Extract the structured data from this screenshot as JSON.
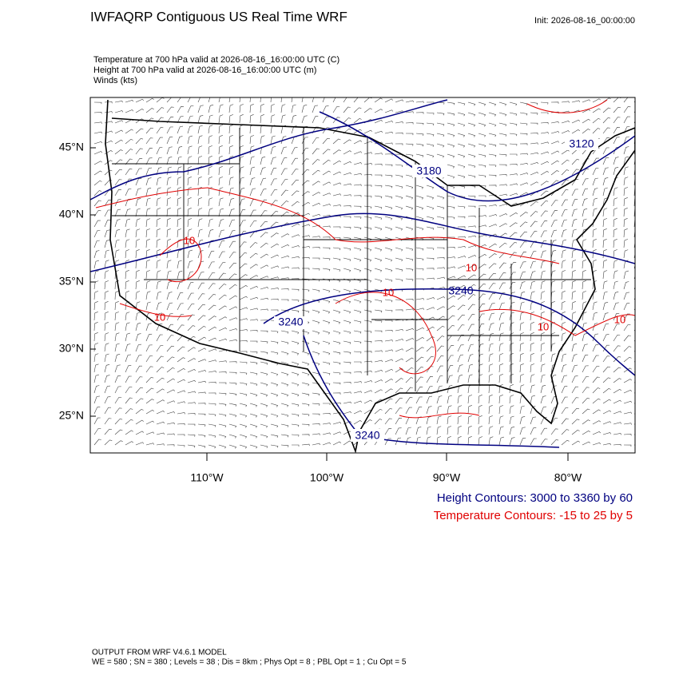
{
  "header": {
    "title": "IWFAQRP Contiguous US Real Time WRF",
    "init": "Init: 2026-08-16_00:00:00"
  },
  "fields": [
    "Temperature at 700 hPa valid at 2026-08-16_16:00:00 UTC   (C)",
    "Height at 700 hPa valid at 2026-08-16_16:00:00 UTC   (m)",
    "Winds   (kts)"
  ],
  "map": {
    "lat_labels": [
      "45°N",
      "40°N",
      "35°N",
      "30°N",
      "25°N"
    ],
    "lon_labels": [
      "110°W",
      "100°W",
      "90°W",
      "80°W"
    ],
    "height_contour_labels": [
      "3120",
      "3180",
      "3240",
      "3240",
      "3240"
    ],
    "temperature_contour_labels": [
      "10",
      "10",
      "10",
      "10",
      "10",
      "10"
    ]
  },
  "legend": {
    "height": "Height Contours: 3000 to 3360 by 60",
    "temperature": "Temperature Contours: -15 to 25 by 5"
  },
  "footer": {
    "model": "OUTPUT FROM WRF V4.6.1 MODEL",
    "settings": "WE = 580 ; SN = 380 ; Levels = 38 ; Dis = 8km ; Phys Opt = 8 ; PBL Opt = 1 ; Cu Opt = 5"
  }
}
